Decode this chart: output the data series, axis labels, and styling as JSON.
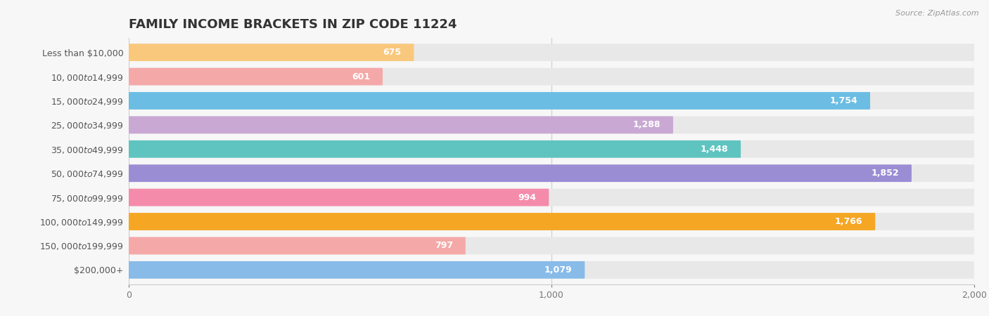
{
  "title": "FAMILY INCOME BRACKETS IN ZIP CODE 11224",
  "source": "Source: ZipAtlas.com",
  "categories": [
    "Less than $10,000",
    "$10,000 to $14,999",
    "$15,000 to $24,999",
    "$25,000 to $34,999",
    "$35,000 to $49,999",
    "$50,000 to $74,999",
    "$75,000 to $99,999",
    "$100,000 to $149,999",
    "$150,000 to $199,999",
    "$200,000+"
  ],
  "values": [
    675,
    601,
    1754,
    1288,
    1448,
    1852,
    994,
    1766,
    797,
    1079
  ],
  "colors": [
    "#F9C87C",
    "#F4A9A8",
    "#6BBDE3",
    "#C9A8D4",
    "#5FC4C0",
    "#9B8DD4",
    "#F48BAB",
    "#F5A623",
    "#F4A9A8",
    "#88BBE8"
  ],
  "xlim": [
    0,
    2000
  ],
  "xticks": [
    0,
    1000,
    2000
  ],
  "background_color": "#f7f7f7",
  "bar_bg_color": "#e8e8e8",
  "title_fontsize": 13,
  "label_fontsize": 9,
  "value_fontsize": 9
}
